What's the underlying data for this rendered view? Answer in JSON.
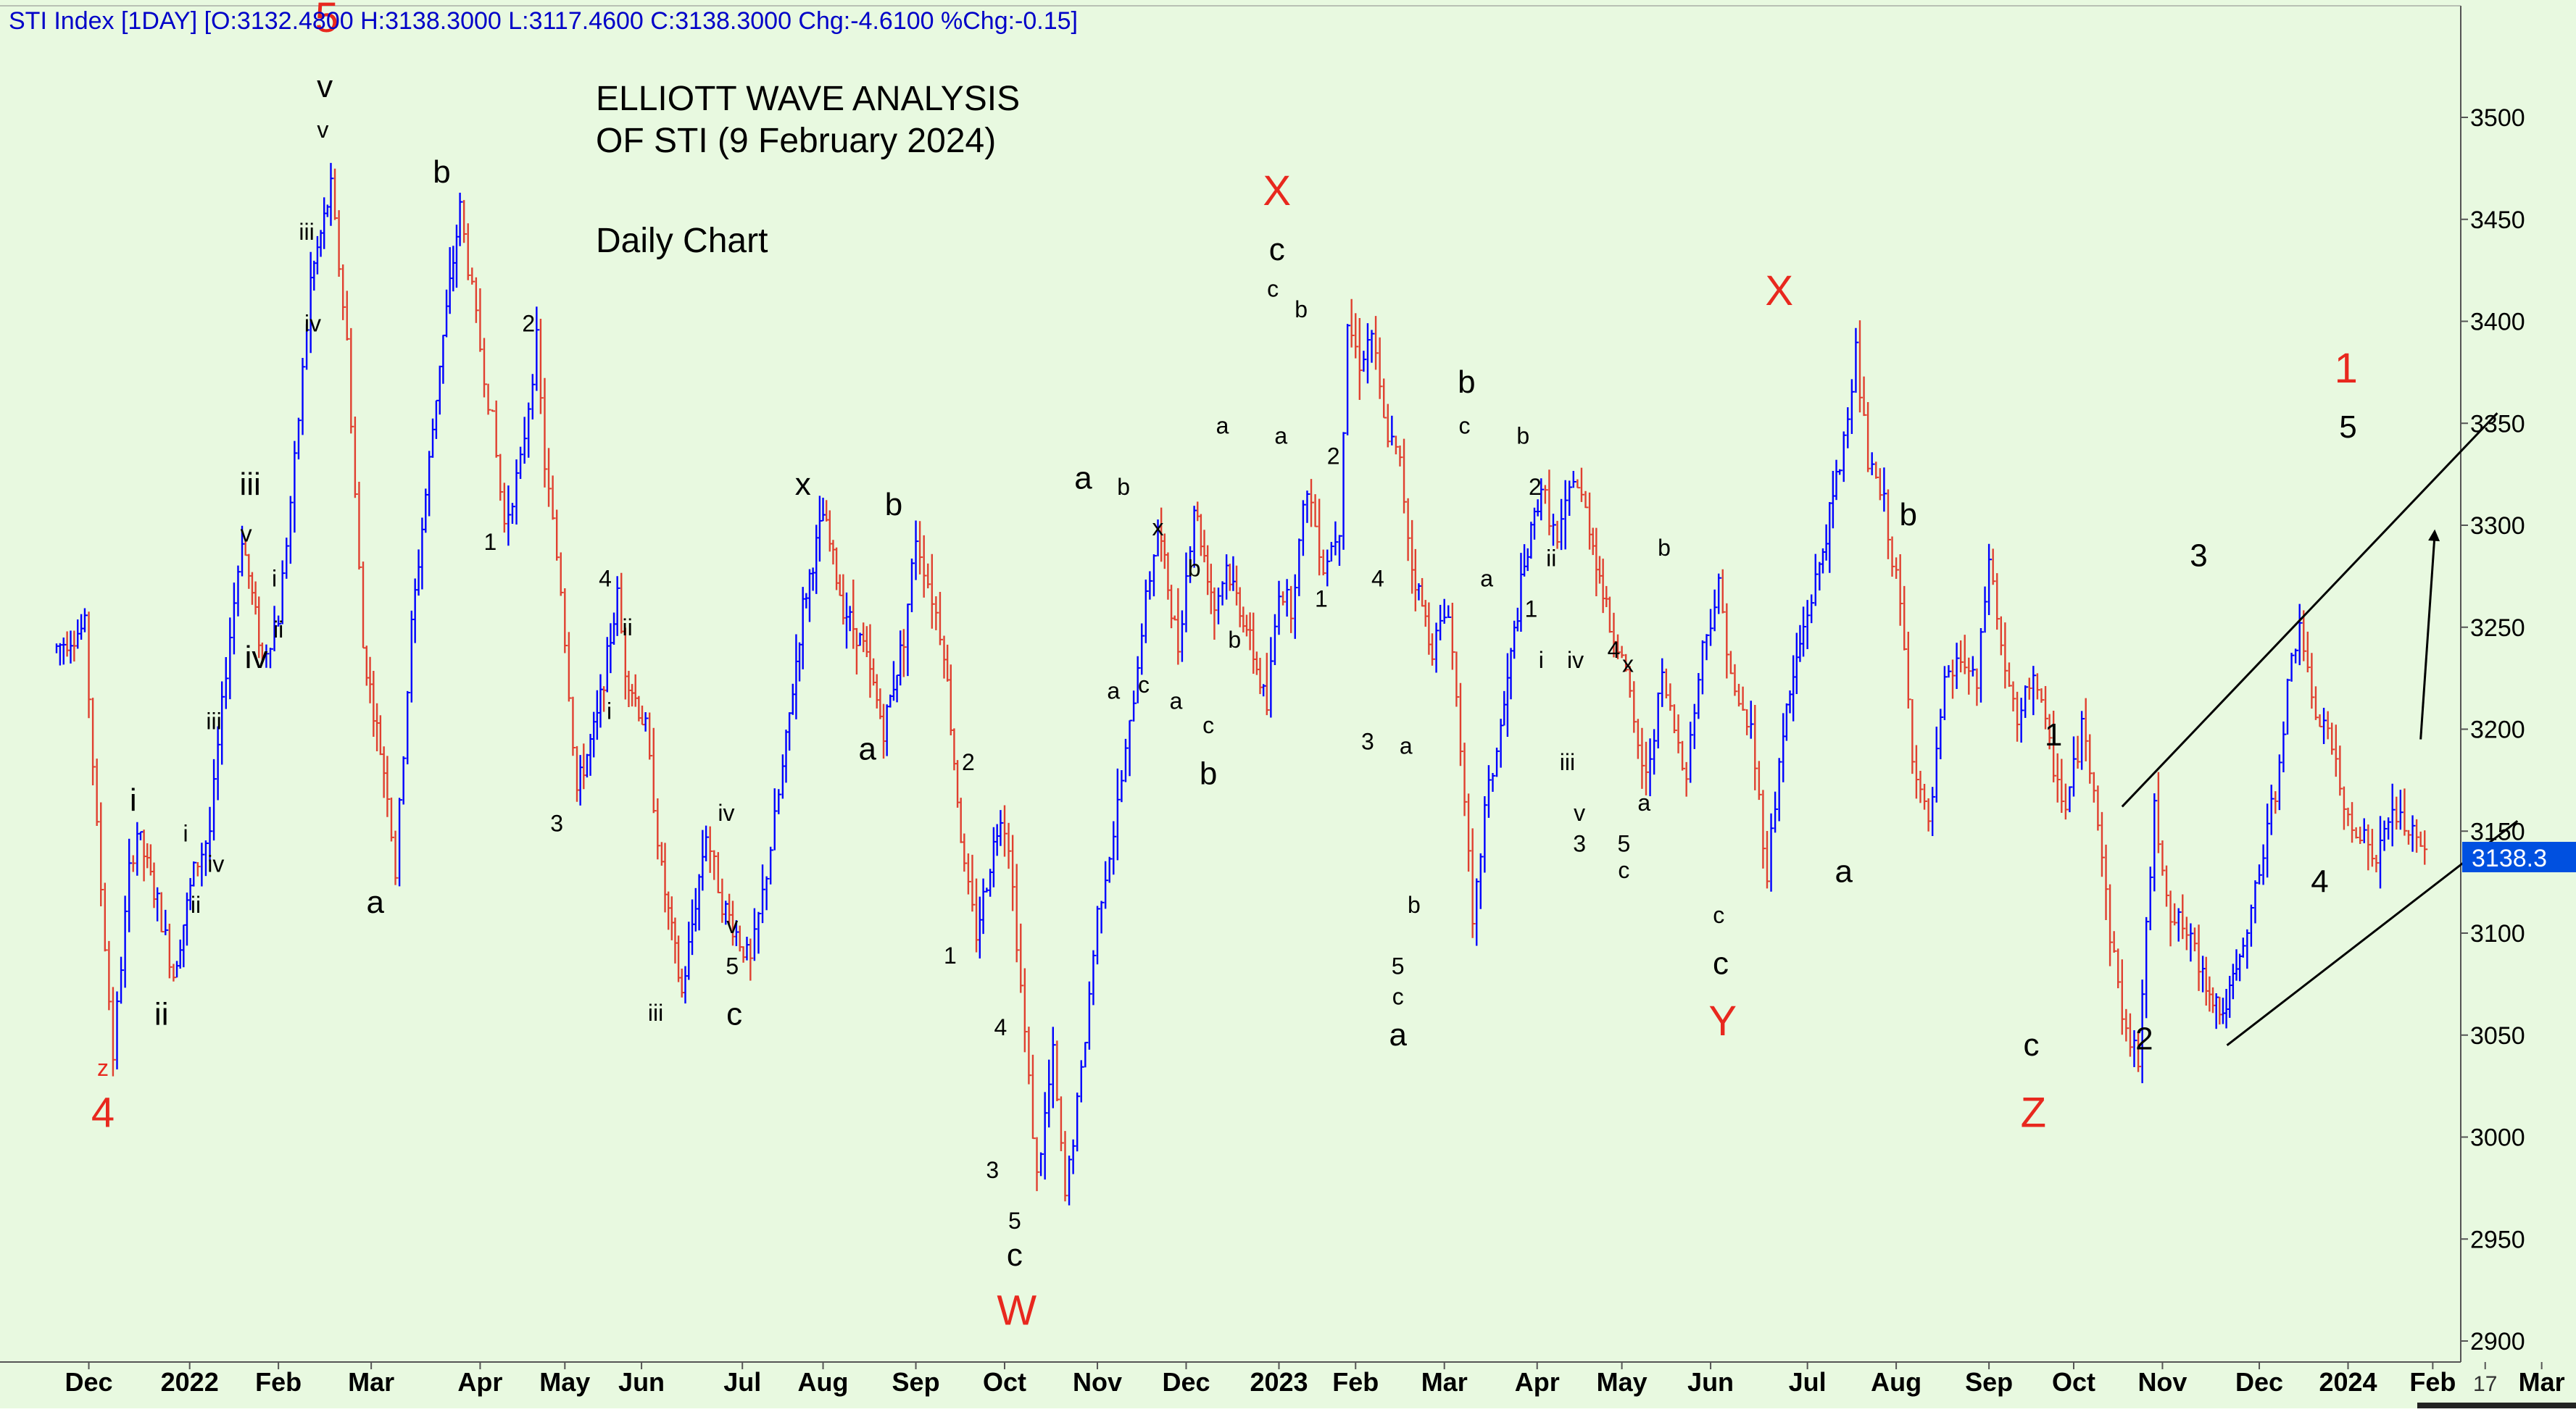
{
  "header": "STI Index [1DAY] [O:3132.4800 H:3138.3000 L:3117.4600 C:3138.3000 Chg:-4.6100 %Chg:-0.15]",
  "chart_data": {
    "type": "ohlc-bar",
    "title": [
      "ELLIOTT WAVE ANALYSIS",
      "OF STI (9 February 2024)"
    ],
    "subtitle": "Daily Chart",
    "ylim": [
      2900,
      3550
    ],
    "y_ticks": [
      2900,
      2950,
      3000,
      3050,
      3100,
      3150,
      3200,
      3250,
      3300,
      3350,
      3400,
      3450,
      3500
    ],
    "x_labels": [
      "Dec",
      "2022",
      "Feb",
      "Mar",
      "Apr",
      "May",
      "Jun",
      "Jul",
      "Aug",
      "Sep",
      "Oct",
      "Nov",
      "Dec",
      "2023",
      "Feb",
      "Mar",
      "Apr",
      "May",
      "Jun",
      "Jul",
      "Aug",
      "Sep",
      "Oct",
      "Nov",
      "Dec",
      "2024",
      "Feb",
      "17",
      "Mar"
    ],
    "x_label_pos": [
      0.8,
      3.3,
      5.5,
      7.8,
      10.5,
      12.6,
      14.5,
      17.0,
      19.0,
      21.3,
      23.5,
      25.8,
      28.0,
      30.3,
      32.2,
      34.4,
      36.7,
      38.8,
      41.0,
      43.4,
      45.6,
      47.9,
      50.0,
      52.2,
      54.6,
      56.8,
      58.9,
      60.2,
      61.6
    ],
    "last_price": "3138.3",
    "colors": {
      "background": "#e8f9e0",
      "up": "#0000ff",
      "down": "#e04030",
      "wave_major": "#e8281e",
      "wave_minor": "#000000",
      "axis_label": "#0000c8",
      "price_tag": "#0050e0"
    },
    "price_path": [
      [
        0,
        3240
      ],
      [
        0.7,
        3250
      ],
      [
        1.0,
        3150
      ],
      [
        1.4,
        3040
      ],
      [
        1.8,
        3130
      ],
      [
        2.0,
        3150
      ],
      [
        2.5,
        3115
      ],
      [
        2.9,
        3080
      ],
      [
        3.4,
        3130
      ],
      [
        3.8,
        3150
      ],
      [
        4.2,
        3230
      ],
      [
        4.6,
        3295
      ],
      [
        5.1,
        3235
      ],
      [
        5.5,
        3255
      ],
      [
        5.9,
        3330
      ],
      [
        6.3,
        3420
      ],
      [
        6.8,
        3465
      ],
      [
        7.2,
        3390
      ],
      [
        7.6,
        3240
      ],
      [
        8.2,
        3170
      ],
      [
        8.4,
        3130
      ],
      [
        8.8,
        3250
      ],
      [
        9.5,
        3380
      ],
      [
        10.0,
        3455
      ],
      [
        10.4,
        3400
      ],
      [
        10.8,
        3350
      ],
      [
        11.1,
        3300
      ],
      [
        11.5,
        3330
      ],
      [
        11.9,
        3390
      ],
      [
        12.1,
        3330
      ],
      [
        12.5,
        3270
      ],
      [
        12.9,
        3170
      ],
      [
        13.4,
        3205
      ],
      [
        13.9,
        3265
      ],
      [
        14.1,
        3230
      ],
      [
        14.6,
        3200
      ],
      [
        15.0,
        3130
      ],
      [
        15.5,
        3070
      ],
      [
        16.1,
        3150
      ],
      [
        16.5,
        3115
      ],
      [
        17.2,
        3085
      ],
      [
        17.6,
        3130
      ],
      [
        18.0,
        3180
      ],
      [
        18.5,
        3260
      ],
      [
        19.0,
        3305
      ],
      [
        19.5,
        3260
      ],
      [
        20.0,
        3240
      ],
      [
        20.5,
        3200
      ],
      [
        21.0,
        3245
      ],
      [
        21.3,
        3295
      ],
      [
        21.7,
        3265
      ],
      [
        22.0,
        3240
      ],
      [
        22.5,
        3130
      ],
      [
        22.8,
        3100
      ],
      [
        23.4,
        3160
      ],
      [
        23.6,
        3145
      ],
      [
        24.0,
        3050
      ],
      [
        24.3,
        2980
      ],
      [
        24.7,
        3040
      ],
      [
        25.0,
        2970
      ],
      [
        25.4,
        3030
      ],
      [
        25.8,
        3110
      ],
      [
        26.2,
        3150
      ],
      [
        26.6,
        3200
      ],
      [
        26.9,
        3250
      ],
      [
        27.3,
        3300
      ],
      [
        27.8,
        3240
      ],
      [
        28.2,
        3310
      ],
      [
        28.7,
        3260
      ],
      [
        29.0,
        3280
      ],
      [
        29.5,
        3250
      ],
      [
        30.0,
        3210
      ],
      [
        30.3,
        3270
      ],
      [
        30.6,
        3260
      ],
      [
        31.0,
        3320
      ],
      [
        31.4,
        3280
      ],
      [
        31.8,
        3300
      ],
      [
        32.0,
        3400
      ],
      [
        32.3,
        3380
      ],
      [
        32.6,
        3395
      ],
      [
        32.9,
        3350
      ],
      [
        33.3,
        3330
      ],
      [
        33.6,
        3280
      ],
      [
        34.1,
        3240
      ],
      [
        34.5,
        3260
      ],
      [
        34.9,
        3170
      ],
      [
        35.1,
        3100
      ],
      [
        35.4,
        3160
      ],
      [
        35.8,
        3200
      ],
      [
        36.3,
        3270
      ],
      [
        36.8,
        3320
      ],
      [
        37.2,
        3290
      ],
      [
        37.6,
        3325
      ],
      [
        38.0,
        3300
      ],
      [
        38.5,
        3250
      ],
      [
        38.8,
        3240
      ],
      [
        39.1,
        3200
      ],
      [
        39.4,
        3175
      ],
      [
        39.8,
        3225
      ],
      [
        40.1,
        3200
      ],
      [
        40.4,
        3180
      ],
      [
        40.8,
        3240
      ],
      [
        41.2,
        3270
      ],
      [
        41.6,
        3215
      ],
      [
        42.0,
        3200
      ],
      [
        42.4,
        3130
      ],
      [
        42.8,
        3200
      ],
      [
        43.3,
        3250
      ],
      [
        43.7,
        3280
      ],
      [
        44.2,
        3330
      ],
      [
        44.6,
        3385
      ],
      [
        44.9,
        3330
      ],
      [
        45.3,
        3310
      ],
      [
        45.7,
        3260
      ],
      [
        46.0,
        3190
      ],
      [
        46.4,
        3150
      ],
      [
        46.8,
        3220
      ],
      [
        47.2,
        3235
      ],
      [
        47.6,
        3220
      ],
      [
        47.9,
        3285
      ],
      [
        48.2,
        3240
      ],
      [
        48.6,
        3200
      ],
      [
        49.0,
        3230
      ],
      [
        49.4,
        3190
      ],
      [
        49.8,
        3160
      ],
      [
        50.2,
        3200
      ],
      [
        50.5,
        3175
      ],
      [
        50.9,
        3100
      ],
      [
        51.3,
        3050
      ],
      [
        51.6,
        3040
      ],
      [
        52.0,
        3160
      ],
      [
        52.4,
        3110
      ],
      [
        52.8,
        3100
      ],
      [
        53.2,
        3080
      ],
      [
        53.7,
        3060
      ],
      [
        54.2,
        3090
      ],
      [
        54.6,
        3130
      ],
      [
        55.0,
        3170
      ],
      [
        55.3,
        3220
      ],
      [
        55.6,
        3255
      ],
      [
        55.9,
        3210
      ],
      [
        56.3,
        3200
      ],
      [
        56.7,
        3160
      ],
      [
        57.1,
        3150
      ],
      [
        57.5,
        3135
      ],
      [
        57.9,
        3160
      ],
      [
        58.3,
        3150
      ],
      [
        58.6,
        3140
      ],
      [
        58.8,
        3138.3
      ]
    ],
    "trend_lines": [
      {
        "from": [
          51.2,
          3162
        ],
        "to": [
          60.5,
          3355
        ]
      },
      {
        "from": [
          53.8,
          3045
        ],
        "to": [
          61.0,
          3155
        ]
      }
    ],
    "arrow": {
      "from": [
        58.6,
        3195
      ],
      "to": [
        58.95,
        3298
      ]
    },
    "wave_labels": [
      {
        "t": "z",
        "x": 1.15,
        "y": 3030,
        "s": "sm",
        "c": "red"
      },
      {
        "t": "4",
        "x": 1.15,
        "y": 3005,
        "s": "lg",
        "c": "red"
      },
      {
        "t": "i",
        "x": 1.9,
        "y": 3160,
        "s": "md",
        "c": "black"
      },
      {
        "t": "ii",
        "x": 2.6,
        "y": 3055,
        "s": "md",
        "c": "black"
      },
      {
        "t": "i",
        "x": 3.2,
        "y": 3145,
        "s": "sm",
        "c": "black"
      },
      {
        "t": "ii",
        "x": 3.45,
        "y": 3110,
        "s": "sm",
        "c": "black"
      },
      {
        "t": "iv",
        "x": 3.95,
        "y": 3130,
        "s": "sm",
        "c": "black"
      },
      {
        "t": "iii",
        "x": 3.9,
        "y": 3200,
        "s": "sm",
        "c": "black"
      },
      {
        "t": "iii",
        "x": 4.8,
        "y": 3315,
        "s": "md",
        "c": "black"
      },
      {
        "t": "v",
        "x": 4.7,
        "y": 3292,
        "s": "sm",
        "c": "black"
      },
      {
        "t": "i",
        "x": 5.4,
        "y": 3270,
        "s": "sm",
        "c": "black"
      },
      {
        "t": "iv",
        "x": 4.95,
        "y": 3230,
        "s": "md",
        "c": "black"
      },
      {
        "t": "ii",
        "x": 5.5,
        "y": 3245,
        "s": "sm",
        "c": "black"
      },
      {
        "t": "iii",
        "x": 6.2,
        "y": 3440,
        "s": "sm",
        "c": "black"
      },
      {
        "t": "iv",
        "x": 6.35,
        "y": 3395,
        "s": "sm",
        "c": "black"
      },
      {
        "t": "5",
        "x": 6.7,
        "y": 3542,
        "s": "lg",
        "c": "red"
      },
      {
        "t": "v",
        "x": 6.65,
        "y": 3510,
        "s": "md",
        "c": "black"
      },
      {
        "t": "v",
        "x": 6.6,
        "y": 3490,
        "s": "sm",
        "c": "black"
      },
      {
        "t": "a",
        "x": 7.9,
        "y": 3110,
        "s": "md",
        "c": "black"
      },
      {
        "t": "b",
        "x": 9.55,
        "y": 3468,
        "s": "md",
        "c": "black"
      },
      {
        "t": "1",
        "x": 10.75,
        "y": 3288,
        "s": "sm",
        "c": "black"
      },
      {
        "t": "2",
        "x": 11.7,
        "y": 3395,
        "s": "sm",
        "c": "black"
      },
      {
        "t": "3",
        "x": 12.4,
        "y": 3150,
        "s": "sm",
        "c": "black"
      },
      {
        "t": "4",
        "x": 13.6,
        "y": 3270,
        "s": "sm",
        "c": "black"
      },
      {
        "t": "ii",
        "x": 14.15,
        "y": 3246,
        "s": "sm",
        "c": "black"
      },
      {
        "t": "i",
        "x": 13.7,
        "y": 3205,
        "s": "sm",
        "c": "black"
      },
      {
        "t": "iii",
        "x": 14.85,
        "y": 3057,
        "s": "sm",
        "c": "black"
      },
      {
        "t": "iv",
        "x": 16.6,
        "y": 3155,
        "s": "sm",
        "c": "black"
      },
      {
        "t": "v",
        "x": 16.75,
        "y": 3100,
        "s": "sm",
        "c": "black"
      },
      {
        "t": "5",
        "x": 16.75,
        "y": 3080,
        "s": "sm",
        "c": "black"
      },
      {
        "t": "c",
        "x": 16.8,
        "y": 3055,
        "s": "md",
        "c": "black"
      },
      {
        "t": "x",
        "x": 18.5,
        "y": 3315,
        "s": "md",
        "c": "black"
      },
      {
        "t": "a",
        "x": 20.1,
        "y": 3185,
        "s": "md",
        "c": "black"
      },
      {
        "t": "b",
        "x": 20.75,
        "y": 3305,
        "s": "md",
        "c": "black"
      },
      {
        "t": "2",
        "x": 22.6,
        "y": 3180,
        "s": "sm",
        "c": "black"
      },
      {
        "t": "1",
        "x": 22.15,
        "y": 3085,
        "s": "sm",
        "c": "black"
      },
      {
        "t": "4",
        "x": 23.4,
        "y": 3050,
        "s": "sm",
        "c": "black"
      },
      {
        "t": "3",
        "x": 23.2,
        "y": 2980,
        "s": "sm",
        "c": "black"
      },
      {
        "t": "5",
        "x": 23.75,
        "y": 2955,
        "s": "sm",
        "c": "black"
      },
      {
        "t": "c",
        "x": 23.75,
        "y": 2937,
        "s": "md",
        "c": "black"
      },
      {
        "t": "W",
        "x": 23.8,
        "y": 2908,
        "s": "lg",
        "c": "red"
      },
      {
        "t": "a",
        "x": 25.45,
        "y": 3318,
        "s": "md",
        "c": "black"
      },
      {
        "t": "b",
        "x": 26.45,
        "y": 3315,
        "s": "sm",
        "c": "black"
      },
      {
        "t": "a",
        "x": 26.2,
        "y": 3215,
        "s": "sm",
        "c": "black"
      },
      {
        "t": "c",
        "x": 26.95,
        "y": 3218,
        "s": "sm",
        "c": "black"
      },
      {
        "t": "x",
        "x": 27.3,
        "y": 3295,
        "s": "sm",
        "c": "black"
      },
      {
        "t": "a",
        "x": 27.75,
        "y": 3210,
        "s": "sm",
        "c": "black"
      },
      {
        "t": "b",
        "x": 28.2,
        "y": 3275,
        "s": "sm",
        "c": "black"
      },
      {
        "t": "c",
        "x": 28.55,
        "y": 3198,
        "s": "sm",
        "c": "black"
      },
      {
        "t": "b",
        "x": 28.55,
        "y": 3173,
        "s": "md",
        "c": "black"
      },
      {
        "t": "b",
        "x": 29.2,
        "y": 3240,
        "s": "sm",
        "c": "black"
      },
      {
        "t": "a",
        "x": 28.9,
        "y": 3345,
        "s": "sm",
        "c": "black"
      },
      {
        "t": "X",
        "x": 30.25,
        "y": 3457,
        "s": "lg",
        "c": "red"
      },
      {
        "t": "c",
        "x": 30.25,
        "y": 3430,
        "s": "md",
        "c": "black"
      },
      {
        "t": "c",
        "x": 30.15,
        "y": 3412,
        "s": "sm",
        "c": "black"
      },
      {
        "t": "b",
        "x": 30.85,
        "y": 3402,
        "s": "sm",
        "c": "black"
      },
      {
        "t": "a",
        "x": 30.35,
        "y": 3340,
        "s": "sm",
        "c": "black"
      },
      {
        "t": "2",
        "x": 31.65,
        "y": 3330,
        "s": "sm",
        "c": "black"
      },
      {
        "t": "1",
        "x": 31.35,
        "y": 3260,
        "s": "sm",
        "c": "black"
      },
      {
        "t": "4",
        "x": 32.75,
        "y": 3270,
        "s": "sm",
        "c": "black"
      },
      {
        "t": "3",
        "x": 32.5,
        "y": 3190,
        "s": "sm",
        "c": "black"
      },
      {
        "t": "a",
        "x": 33.45,
        "y": 3188,
        "s": "sm",
        "c": "black"
      },
      {
        "t": "b",
        "x": 33.65,
        "y": 3110,
        "s": "sm",
        "c": "black"
      },
      {
        "t": "5",
        "x": 33.25,
        "y": 3080,
        "s": "sm",
        "c": "black"
      },
      {
        "t": "c",
        "x": 33.25,
        "y": 3065,
        "s": "sm",
        "c": "black"
      },
      {
        "t": "a",
        "x": 33.25,
        "y": 3045,
        "s": "md",
        "c": "black"
      },
      {
        "t": "b",
        "x": 34.95,
        "y": 3365,
        "s": "md",
        "c": "black"
      },
      {
        "t": "c",
        "x": 34.9,
        "y": 3345,
        "s": "sm",
        "c": "black"
      },
      {
        "t": "a",
        "x": 35.45,
        "y": 3270,
        "s": "sm",
        "c": "black"
      },
      {
        "t": "b",
        "x": 36.35,
        "y": 3340,
        "s": "sm",
        "c": "black"
      },
      {
        "t": "2",
        "x": 36.65,
        "y": 3315,
        "s": "sm",
        "c": "black"
      },
      {
        "t": "ii",
        "x": 37.05,
        "y": 3280,
        "s": "sm",
        "c": "black"
      },
      {
        "t": "1",
        "x": 36.55,
        "y": 3255,
        "s": "sm",
        "c": "black"
      },
      {
        "t": "i",
        "x": 36.8,
        "y": 3230,
        "s": "sm",
        "c": "black"
      },
      {
        "t": "iv",
        "x": 37.65,
        "y": 3230,
        "s": "sm",
        "c": "black"
      },
      {
        "t": "iii",
        "x": 37.45,
        "y": 3180,
        "s": "sm",
        "c": "black"
      },
      {
        "t": "v",
        "x": 37.75,
        "y": 3155,
        "s": "sm",
        "c": "black"
      },
      {
        "t": "3",
        "x": 37.75,
        "y": 3140,
        "s": "sm",
        "c": "black"
      },
      {
        "t": "4",
        "x": 38.6,
        "y": 3235,
        "s": "sm",
        "c": "black"
      },
      {
        "t": "x",
        "x": 38.95,
        "y": 3228,
        "s": "sm",
        "c": "black"
      },
      {
        "t": "a",
        "x": 39.35,
        "y": 3160,
        "s": "sm",
        "c": "black"
      },
      {
        "t": "5",
        "x": 38.85,
        "y": 3140,
        "s": "sm",
        "c": "black"
      },
      {
        "t": "c",
        "x": 38.85,
        "y": 3127,
        "s": "sm",
        "c": "black"
      },
      {
        "t": "b",
        "x": 39.85,
        "y": 3285,
        "s": "sm",
        "c": "black"
      },
      {
        "t": "c",
        "x": 41.2,
        "y": 3105,
        "s": "sm",
        "c": "black"
      },
      {
        "t": "c",
        "x": 41.25,
        "y": 3080,
        "s": "md",
        "c": "black"
      },
      {
        "t": "Y",
        "x": 41.3,
        "y": 3050,
        "s": "lg",
        "c": "red"
      },
      {
        "t": "X",
        "x": 42.7,
        "y": 3408,
        "s": "lg",
        "c": "red"
      },
      {
        "t": "a",
        "x": 44.3,
        "y": 3125,
        "s": "md",
        "c": "black"
      },
      {
        "t": "b",
        "x": 45.9,
        "y": 3300,
        "s": "md",
        "c": "black"
      },
      {
        "t": "1",
        "x": 49.5,
        "y": 3192,
        "s": "md",
        "c": "black"
      },
      {
        "t": "c",
        "x": 48.95,
        "y": 3040,
        "s": "md",
        "c": "black"
      },
      {
        "t": "Z",
        "x": 49.0,
        "y": 3005,
        "s": "lg",
        "c": "red"
      },
      {
        "t": "2",
        "x": 51.75,
        "y": 3043,
        "s": "md",
        "c": "black"
      },
      {
        "t": "3",
        "x": 53.1,
        "y": 3280,
        "s": "md",
        "c": "black"
      },
      {
        "t": "4",
        "x": 56.1,
        "y": 3120,
        "s": "md",
        "c": "black"
      },
      {
        "t": "1",
        "x": 56.75,
        "y": 3370,
        "s": "lg",
        "c": "red"
      },
      {
        "t": "5",
        "x": 56.8,
        "y": 3343,
        "s": "md",
        "c": "black"
      }
    ]
  }
}
